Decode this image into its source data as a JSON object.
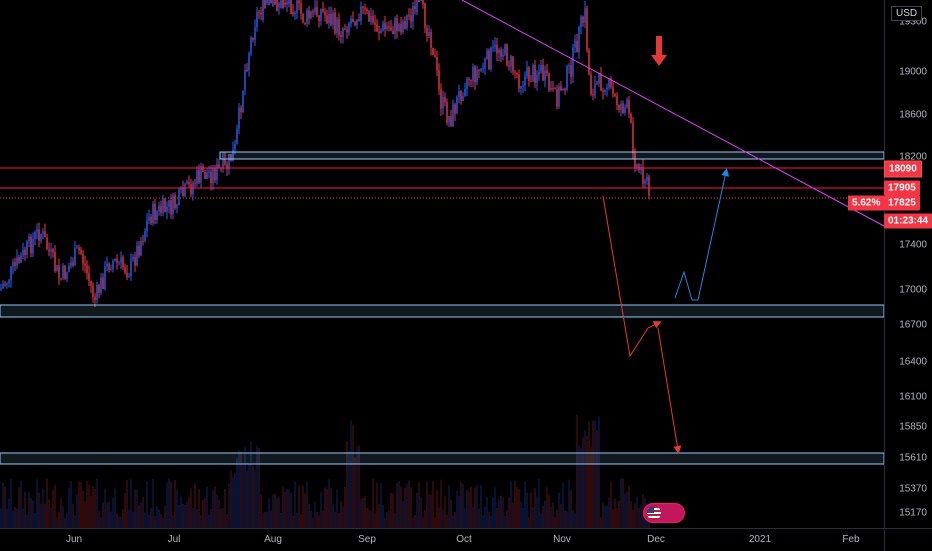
{
  "currency": "USD",
  "price_axis": {
    "ticks": [
      "19300",
      "19000",
      "18600",
      "18200",
      "17400",
      "17000",
      "16700",
      "16400",
      "16100",
      "15850",
      "15610",
      "15370",
      "15170"
    ]
  },
  "time_axis": {
    "labels": [
      "Jun",
      "Jul",
      "Aug",
      "Sep",
      "Oct",
      "Nov",
      "Dec",
      "2021",
      "Feb"
    ]
  },
  "price_labels": {
    "upper_line": "18090",
    "lower_line": "17905",
    "current_price": "17825",
    "change_pct": "5.62%",
    "countdown": "01:23:44"
  },
  "colors": {
    "background": "#000000",
    "up_candle": "#2962ff",
    "down_candle": "#f23645",
    "resistance_line": "#ff1744",
    "trendline": "#e040fb",
    "zone_border": "#90caf9",
    "arrow_red": "#e53935",
    "arrow_blue": "#1e88e5",
    "label_bg": "#f23645"
  },
  "icons": {
    "down_arrow_marker": "down-arrow-icon",
    "flag": "us-flag-icon"
  }
}
